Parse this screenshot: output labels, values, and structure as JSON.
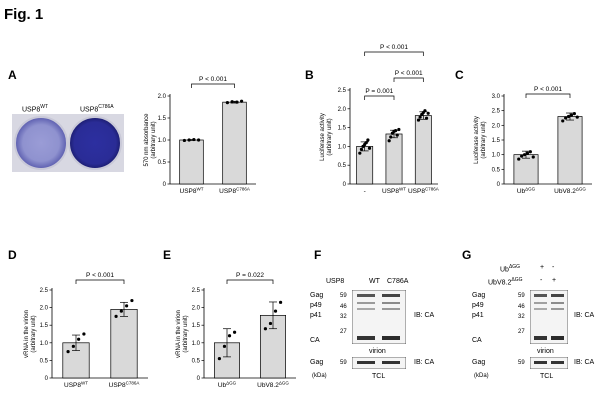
{
  "figure_title": "Fig. 1",
  "panels": {
    "A": {
      "letter": "A",
      "plate_labels": [
        "USP8",
        "WT",
        "USP8",
        "C786A"
      ],
      "chart": {
        "type": "bar",
        "categories": [
          [
            "USP8",
            "WT"
          ],
          [
            "USP8",
            "C786A"
          ]
        ],
        "values": [
          1.0,
          1.86
        ],
        "points": [
          [
            0.99,
            1.0,
            1.01,
            1.0
          ],
          [
            1.85,
            1.87,
            1.86,
            1.88
          ]
        ],
        "errors": [
          0.01,
          0.02
        ],
        "ylim": [
          0,
          2.0
        ],
        "yticks": [
          "0",
          "0.5",
          "1.0",
          "1.5",
          "2.0"
        ],
        "ylabel": [
          "570 nm absorbance",
          "(arbitrary unit)"
        ],
        "comparisons": [
          {
            "a": 0,
            "b": 1,
            "label": "P < 0.001"
          }
        ]
      }
    },
    "B": {
      "letter": "B",
      "chart": {
        "type": "bar",
        "categories": [
          [
            "-",
            ""
          ],
          [
            "USP8",
            "WT"
          ],
          [
            "USP8",
            "C786A"
          ]
        ],
        "values": [
          1.0,
          1.33,
          1.82
        ],
        "points": [
          [
            0.82,
            0.92,
            1.0,
            1.05,
            1.1,
            1.17,
            0.95
          ],
          [
            1.15,
            1.25,
            1.35,
            1.4,
            1.42,
            1.3,
            1.45
          ],
          [
            1.7,
            1.78,
            1.85,
            1.9,
            1.95,
            1.75,
            1.88
          ]
        ],
        "errors": [
          0.12,
          0.1,
          0.1
        ],
        "ylim": [
          0,
          2.5
        ],
        "yticks": [
          "0",
          "0.5",
          "1.0",
          "1.5",
          "2.0",
          "2.5"
        ],
        "ylabel": [
          "Luciferase activity",
          "(arbitrary unit)"
        ],
        "comparisons": [
          {
            "a": 0,
            "b": 1,
            "label": "P = 0.001"
          },
          {
            "a": 1,
            "b": 2,
            "label": "P < 0.001"
          },
          {
            "a": 0,
            "b": 2,
            "label": "P < 0.001"
          }
        ]
      }
    },
    "C": {
      "letter": "C",
      "chart": {
        "type": "bar",
        "categories": [
          [
            "Ub",
            "ΔGG"
          ],
          [
            "UbV8.2",
            "ΔGG"
          ]
        ],
        "values": [
          1.0,
          2.3
        ],
        "points": [
          [
            0.85,
            0.95,
            1.0,
            1.05,
            1.1,
            0.92
          ],
          [
            2.15,
            2.25,
            2.3,
            2.35,
            2.4,
            2.28
          ]
        ],
        "errors": [
          0.12,
          0.12
        ],
        "ylim": [
          0,
          3.0
        ],
        "yticks": [
          "0",
          "0.5",
          "1.0",
          "1.5",
          "2.0",
          "2.5",
          "3.0"
        ],
        "ylabel": [
          "Luciferase activity",
          "(arbitrary unit)"
        ],
        "comparisons": [
          {
            "a": 0,
            "b": 1,
            "label": "P < 0.001"
          }
        ]
      }
    },
    "D": {
      "letter": "D",
      "chart": {
        "type": "bar",
        "categories": [
          [
            "USP8",
            "WT"
          ],
          [
            "USP8",
            "C786A"
          ]
        ],
        "values": [
          1.0,
          1.95
        ],
        "points": [
          [
            0.75,
            0.9,
            1.1,
            1.25
          ],
          [
            1.75,
            1.9,
            2.05,
            2.2
          ]
        ],
        "errors": [
          0.22,
          0.2
        ],
        "ylim": [
          0,
          2.5
        ],
        "yticks": [
          "0",
          "0.5",
          "1.0",
          "1.5",
          "2.0",
          "2.5"
        ],
        "ylabel": [
          "vRNA in the virion",
          "(arbitrary unit)"
        ],
        "comparisons": [
          {
            "a": 0,
            "b": 1,
            "label": "P < 0.001"
          }
        ]
      }
    },
    "E": {
      "letter": "E",
      "chart": {
        "type": "bar",
        "categories": [
          [
            "Ub",
            "ΔGG"
          ],
          [
            "UbV8.2",
            "ΔGG"
          ]
        ],
        "values": [
          1.0,
          1.78
        ],
        "points": [
          [
            0.55,
            0.9,
            1.2,
            1.3
          ],
          [
            1.4,
            1.55,
            1.9,
            2.15
          ]
        ],
        "errors": [
          0.4,
          0.38
        ],
        "ylim": [
          0,
          2.5
        ],
        "yticks": [
          "0",
          "0.5",
          "1.0",
          "1.5",
          "2.0",
          "2.5"
        ],
        "ylabel": [
          "vRNA in the virion",
          "(arbitrary unit)"
        ],
        "comparisons": [
          {
            "a": 0,
            "b": 1,
            "label": "P = 0.022"
          }
        ]
      }
    },
    "F": {
      "letter": "F",
      "header_label": "USP8",
      "lane_labels": [
        "WT",
        "C786A"
      ],
      "band_labels": [
        "Gag",
        "p49",
        "p41",
        "CA"
      ],
      "mw_markers": [
        "59",
        "46",
        "32",
        "27"
      ],
      "ib_label": "IB: CA",
      "virion_label": "virion",
      "tcl_band": "Gag",
      "tcl_mw": "59",
      "kda_label": "(kDa)",
      "tcl_label": "TCL",
      "tcl_ib_label": "IB: CA"
    },
    "G": {
      "letter": "G",
      "row_labels": [
        {
          "name": "Ub",
          "sup": "ΔGG",
          "lane1": "+",
          "lane2": "-"
        },
        {
          "name": "UbV8.2",
          "sup": "ΔGG",
          "lane1": "-",
          "lane2": "+"
        }
      ],
      "band_labels": [
        "Gag",
        "p49",
        "p41",
        "CA"
      ],
      "mw_markers": [
        "59",
        "46",
        "32",
        "27"
      ],
      "ib_label": "IB: CA",
      "virion_label": "virion",
      "tcl_band": "Gag",
      "tcl_mw": "59",
      "kda_label": "(kDa)",
      "tcl_label": "TCL",
      "tcl_ib_label": "IB: CA"
    }
  }
}
